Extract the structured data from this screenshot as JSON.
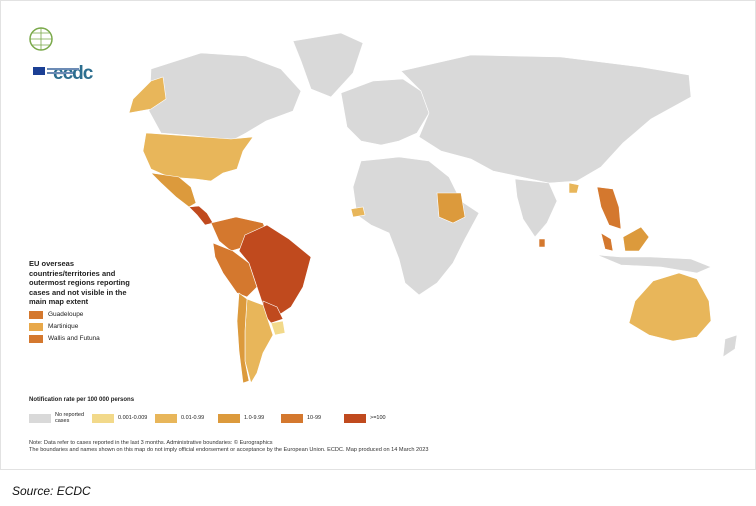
{
  "logo": {
    "text": "ecdc"
  },
  "inset": {
    "title": "EU overseas countries/territories and outermost regions reporting cases and not visible in the main map extent",
    "items": [
      {
        "label": "Guadeloupe",
        "color": "#d4782e"
      },
      {
        "label": "Martinique",
        "color": "#e8a84a"
      },
      {
        "label": "Wallis and Futuna",
        "color": "#d4782e"
      }
    ]
  },
  "legend": {
    "title": "Notification rate per 100 000 persons",
    "items": [
      {
        "label": "No reported cases",
        "color": "#d9d9d9"
      },
      {
        "label": "0.001-0.009",
        "color": "#f2d98a"
      },
      {
        "label": "0.01-0.99",
        "color": "#e8b65a"
      },
      {
        "label": "1.0-9.99",
        "color": "#dc9a3c"
      },
      {
        "label": "10-99",
        "color": "#d4782e"
      },
      {
        "label": ">=100",
        "color": "#c04a1e"
      }
    ]
  },
  "note": {
    "line1": "Note: Data refer to cases reported in the last 3 months. Administrative boundaries: © Eurographics",
    "line2": "The boundaries and names shown on this map do not imply official endorsement or acceptance by the European Union. ECDC. Map produced on 14 March 2023"
  },
  "source": "Source: ECDC",
  "regions": [
    {
      "name": "canada",
      "color": "#d9d9d9"
    },
    {
      "name": "alaska",
      "color": "#e8b65a"
    },
    {
      "name": "greenland",
      "color": "#d9d9d9"
    },
    {
      "name": "usa",
      "color": "#e8b65a"
    },
    {
      "name": "mexico",
      "color": "#dc9a3c"
    },
    {
      "name": "central-america",
      "color": "#c04a1e"
    },
    {
      "name": "colombia-venezuela",
      "color": "#d4782e"
    },
    {
      "name": "peru-bolivia",
      "color": "#d4782e"
    },
    {
      "name": "brazil",
      "color": "#c04a1e"
    },
    {
      "name": "paraguay",
      "color": "#c04a1e"
    },
    {
      "name": "argentina",
      "color": "#e8b65a"
    },
    {
      "name": "chile",
      "color": "#dc9a3c"
    },
    {
      "name": "uruguay",
      "color": "#f2d98a"
    },
    {
      "name": "europe",
      "color": "#d9d9d9"
    },
    {
      "name": "russia-asia",
      "color": "#d9d9d9"
    },
    {
      "name": "africa",
      "color": "#d9d9d9"
    },
    {
      "name": "sudan",
      "color": "#dc9a3c"
    },
    {
      "name": "west-africa-spot",
      "color": "#e8b65a"
    },
    {
      "name": "india",
      "color": "#d9d9d9"
    },
    {
      "name": "bangladesh",
      "color": "#e8b65a"
    },
    {
      "name": "sri-lanka",
      "color": "#d4782e"
    },
    {
      "name": "indochina",
      "color": "#d4782e"
    },
    {
      "name": "malaysia",
      "color": "#d4782e"
    },
    {
      "name": "borneo",
      "color": "#dc9a3c"
    },
    {
      "name": "indonesia",
      "color": "#d9d9d9"
    },
    {
      "name": "australia",
      "color": "#e8b65a"
    },
    {
      "name": "new-zealand",
      "color": "#d9d9d9"
    }
  ]
}
